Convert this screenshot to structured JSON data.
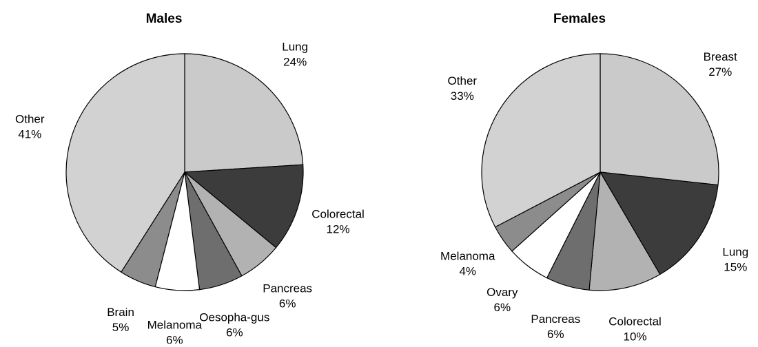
{
  "chart_data": [
    {
      "type": "pie",
      "title": "Males",
      "categories": [
        "Lung",
        "Colorectal",
        "Pancreas",
        "Oesopha-gus",
        "Melanoma",
        "Brain",
        "Other"
      ],
      "values": [
        24,
        12,
        6,
        6,
        6,
        5,
        41
      ],
      "value_labels": [
        "24%",
        "12%",
        "6%",
        "6%",
        "6%",
        "5%",
        "41%"
      ],
      "colors": [
        "#cacaca",
        "#3c3c3c",
        "#b2b2b2",
        "#6e6e6e",
        "#ffffff",
        "#8c8c8c",
        "#d2d2d2"
      ]
    },
    {
      "type": "pie",
      "title": "Females",
      "categories": [
        "Breast",
        "Lung",
        "Colorectal",
        "Pancreas",
        "Ovary",
        "Melanoma",
        "Other"
      ],
      "values": [
        27,
        15,
        10,
        6,
        6,
        4,
        33
      ],
      "value_labels": [
        "27%",
        "15%",
        "10%",
        "6%",
        "6%",
        "4%",
        "33%"
      ],
      "colors": [
        "#cacaca",
        "#3c3c3c",
        "#b2b2b2",
        "#6e6e6e",
        "#ffffff",
        "#8c8c8c",
        "#d2d2d2"
      ]
    }
  ]
}
